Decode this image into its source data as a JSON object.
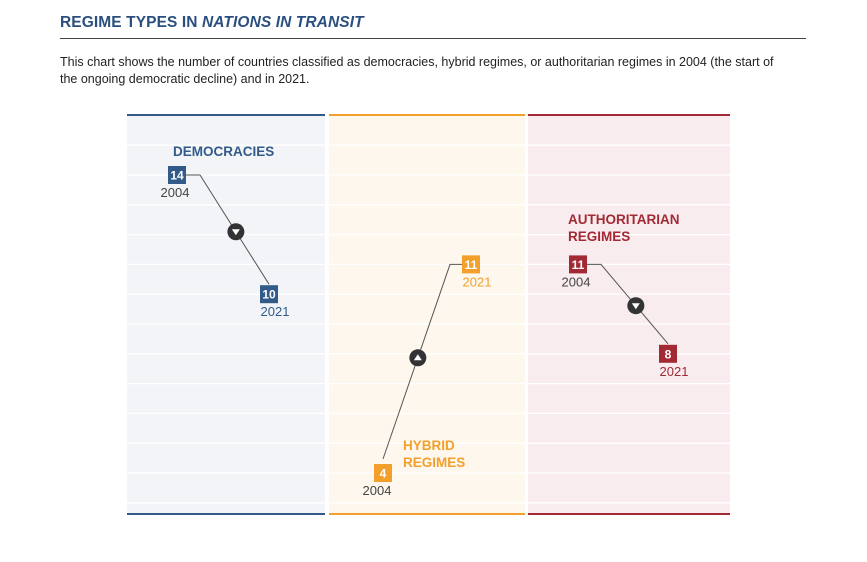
{
  "header": {
    "title_prefix": "REGIME TYPES IN ",
    "title_emph": "NATIONS IN TRANSIT",
    "subtitle": "This chart shows the number of countries classified as democracies, hybrid regimes, or authoritarian regimes in 2004 (the start of the ongoing democratic decline) and in 2021."
  },
  "colors": {
    "democracies": "#335b8a",
    "hybrid": "#f2a02b",
    "authoritarian": "#a32a35",
    "connector": "#555555",
    "year_grey": "#444444"
  },
  "chart_data": {
    "type": "slope",
    "x": [
      "2004",
      "2021"
    ],
    "ylim": [
      0,
      16
    ],
    "panels": [
      {
        "name": "democracies",
        "label_lines": [
          "DEMOCRACIES"
        ],
        "values": [
          14,
          10
        ],
        "value_labels": [
          "14",
          "10"
        ],
        "year_labels": [
          "2004",
          "2021"
        ],
        "direction": "down"
      },
      {
        "name": "hybrid",
        "label_lines": [
          "HYBRID",
          "REGIMES"
        ],
        "values": [
          4,
          11
        ],
        "value_labels": [
          "4",
          "11"
        ],
        "year_labels": [
          "2004",
          "2021"
        ],
        "direction": "up"
      },
      {
        "name": "authoritarian",
        "label_lines": [
          "AUTHORITARIAN",
          "REGIMES"
        ],
        "values": [
          11,
          8
        ],
        "value_labels": [
          "11",
          "8"
        ],
        "year_labels": [
          "2004",
          "2021"
        ],
        "direction": "down"
      }
    ]
  }
}
